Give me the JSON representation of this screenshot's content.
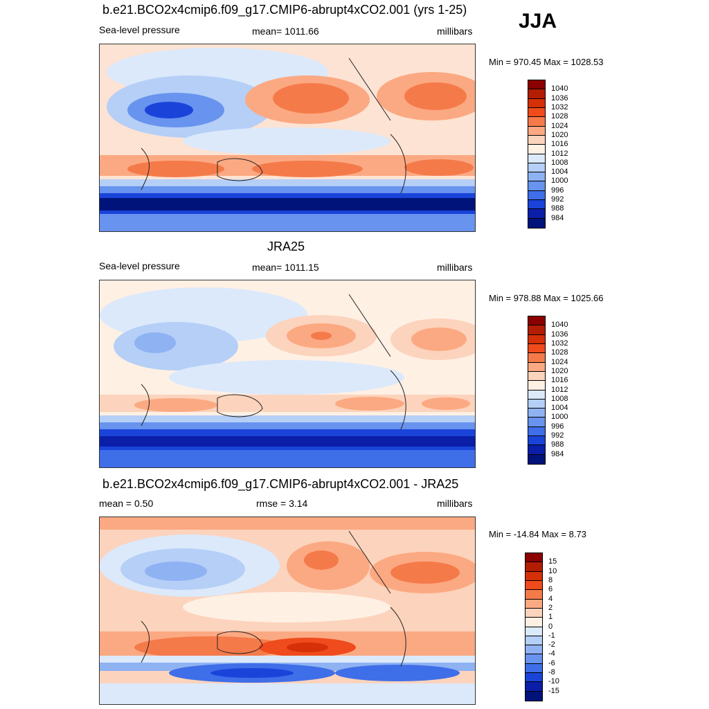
{
  "season": "JJA",
  "units_label": "millibars",
  "panels": [
    {
      "title": "b.e21.BCO2x4cmip6.f09_g17.CMIP6-abrupt4xCO2.001 (yrs 1-25)",
      "left_label": "Sea-level pressure",
      "center_label": "mean= 1011.66",
      "right_label": "millibars",
      "minmax": "Min = 970.45 Max = 1028.53"
    },
    {
      "title": "JRA25",
      "left_label": "Sea-level pressure",
      "center_label": "mean= 1011.15",
      "right_label": "millibars",
      "minmax": "Min = 978.88 Max = 1025.66"
    },
    {
      "title": "b.e21.BCO2x4cmip6.f09_g17.CMIP6-abrupt4xCO2.001 - JRA25",
      "left_label": "mean =   0.50",
      "center_label": "rmse =   3.14",
      "right_label": "millibars",
      "minmax": "Min = -14.84 Max =   8.73"
    }
  ],
  "colorbars": {
    "absolute": {
      "levels": [
        "1040",
        "1036",
        "1032",
        "1028",
        "1024",
        "1020",
        "1016",
        "1012",
        "1008",
        "1004",
        "1000",
        "996",
        "992",
        "988",
        "984"
      ],
      "colors": [
        "#8b0000",
        "#b31d04",
        "#d63008",
        "#ef4b1c",
        "#f57a4a",
        "#fba982",
        "#fcd3bc",
        "#fff0e4",
        "#dbe9fb",
        "#b5cff7",
        "#8fb2f2",
        "#6893ef",
        "#3f6ee9",
        "#1a44d9",
        "#0a1ea8",
        "#00137a"
      ]
    },
    "difference": {
      "levels": [
        "15",
        "10",
        "8",
        "6",
        "4",
        "2",
        "1",
        "0",
        "-1",
        "-2",
        "-4",
        "-6",
        "-8",
        "-10",
        "-15"
      ],
      "colors": [
        "#8b0000",
        "#b31d04",
        "#d63008",
        "#ef4b1c",
        "#f57a4a",
        "#fba982",
        "#fcd3bc",
        "#fff0e4",
        "#dbe9fb",
        "#b5cff7",
        "#8fb2f2",
        "#6893ef",
        "#3f6ee9",
        "#1a44d9",
        "#0a1ea8",
        "#00137a"
      ]
    }
  }
}
